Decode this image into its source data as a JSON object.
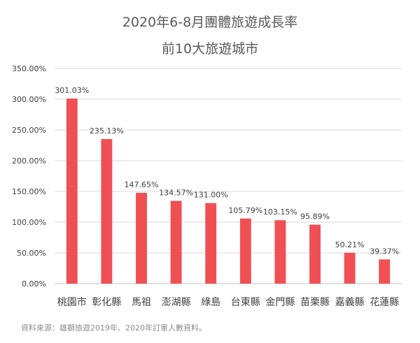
{
  "chart_data": {
    "type": "bar",
    "title": "2020年6-8月團體旅遊成長率",
    "subtitle": "前10大旅遊城市",
    "categories": [
      "桃園市",
      "彰化縣",
      "馬祖",
      "澎湖縣",
      "綠島",
      "台東縣",
      "金門縣",
      "苗栗縣",
      "嘉義縣",
      "花蓮縣"
    ],
    "values": [
      301.03,
      235.13,
      147.65,
      134.57,
      131.0,
      105.79,
      103.15,
      95.89,
      50.21,
      39.37
    ],
    "data_labels": [
      "301.03%",
      "235.13%",
      "147.65%",
      "134.57%",
      "131.00%",
      "105.79%",
      "103.15%",
      "95.89%",
      "50.21%",
      "39.37%"
    ],
    "yticks": [
      "0.00%",
      "50.00%",
      "100.00%",
      "150.00%",
      "200.00%",
      "250.00%",
      "300.00%",
      "350.00%"
    ],
    "ylim": [
      0,
      350
    ],
    "grid": true,
    "bar_color": "#f05053",
    "xlabel": "",
    "ylabel": ""
  },
  "source_note": "資料來源：雄獅旅遊2019年、2020年訂單人數資料。"
}
